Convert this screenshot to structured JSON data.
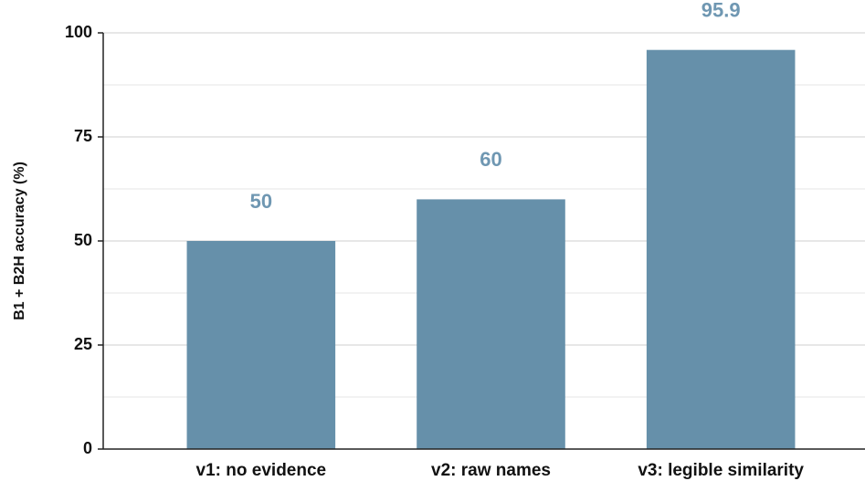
{
  "chart_data": {
    "type": "bar",
    "y_label": "B1 + B2H accuracy (%)",
    "categories": [
      "v1: no evidence",
      "v2: raw names",
      "v3: legible similarity"
    ],
    "values": [
      50,
      60,
      95.9
    ],
    "color": "#6690aa",
    "ylim": [
      0,
      100
    ],
    "yticks": [
      0,
      25,
      50,
      75,
      100
    ],
    "yminor": [
      12.5,
      37.5,
      62.5,
      87.5
    ],
    "grid": true
  }
}
